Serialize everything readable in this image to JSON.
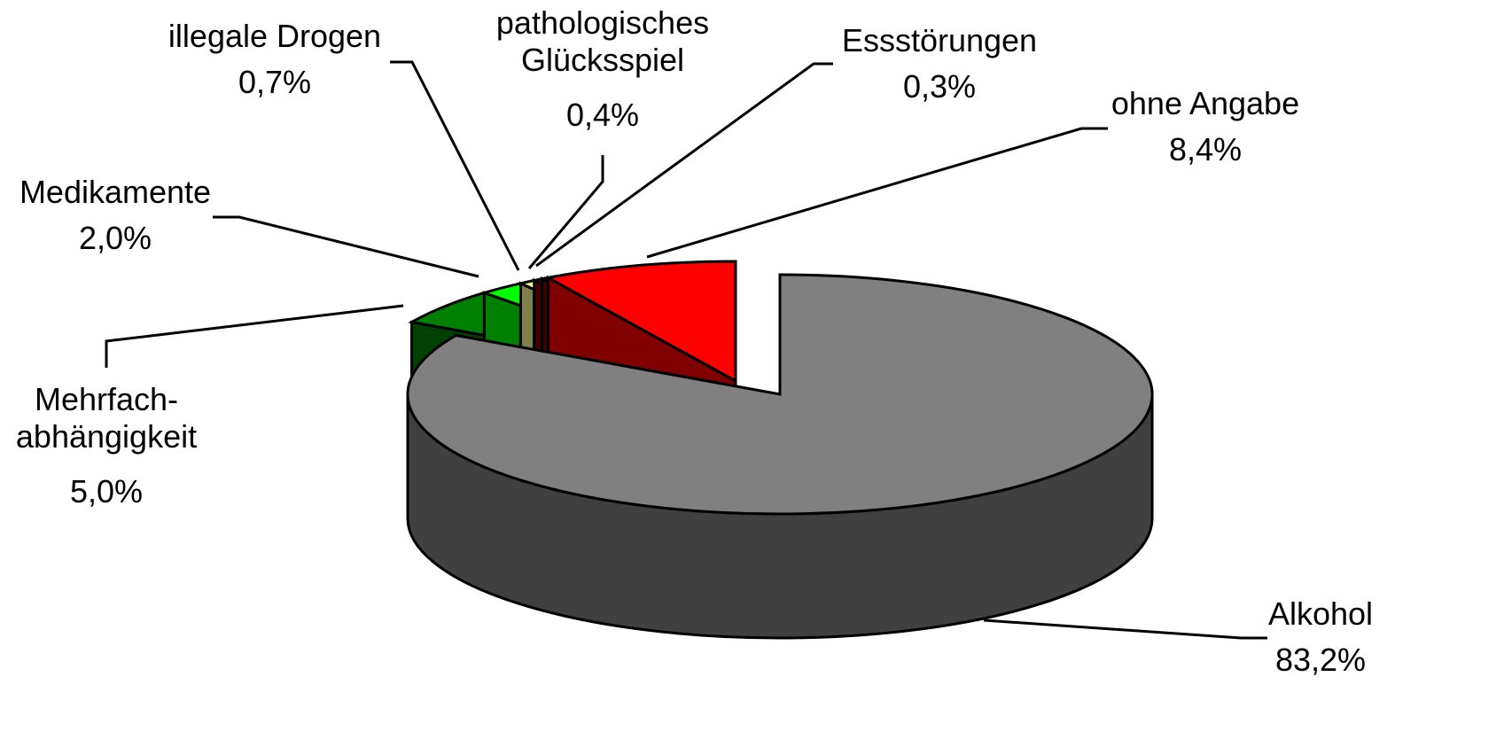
{
  "chart_data": {
    "type": "pie3d",
    "categories": [
      "Alkohol",
      "Mehrfach-\nabhängigkeit",
      "Medikamente",
      "illegale Drogen",
      "pathologisches\nGlücksspiel",
      "Essstörungen",
      "ohne Angabe"
    ],
    "values": [
      83.2,
      5.0,
      2.0,
      0.7,
      0.4,
      0.3,
      8.4
    ],
    "value_labels": [
      "83,2%",
      "5,0%",
      "2,0%",
      "0,7%",
      "0,4%",
      "0,3%",
      "8,4%"
    ],
    "colors": [
      "#808080",
      "#008000",
      "#00ff00",
      "#ffff99",
      "#800000",
      "#800000",
      "#ff0000"
    ]
  }
}
